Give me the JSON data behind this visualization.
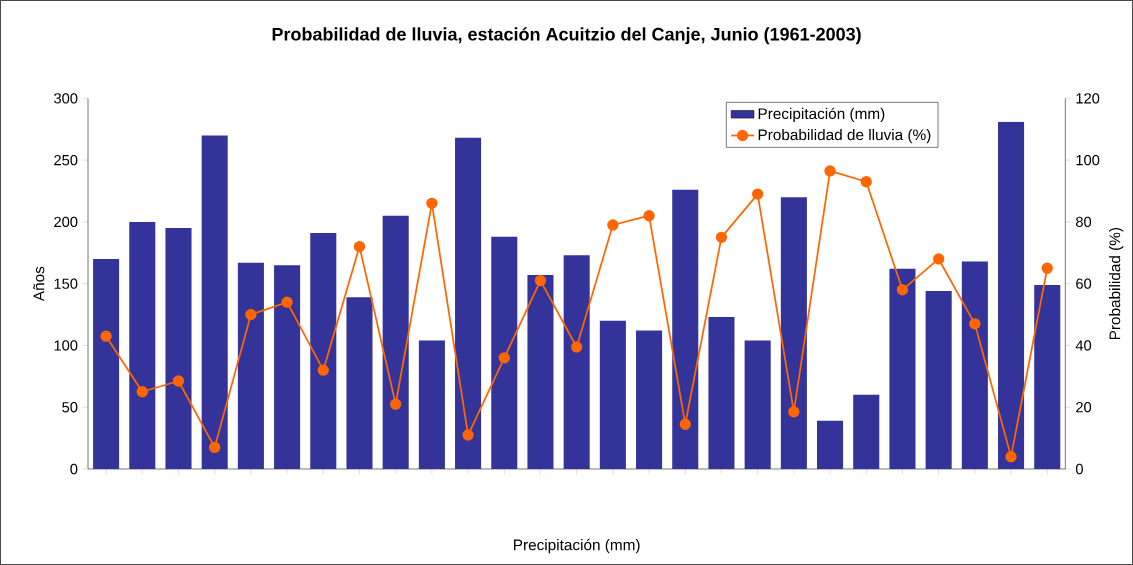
{
  "chart_data": {
    "type": "bar",
    "title": "Probabilidad de lluvia, estación Acuitzio del Canje, Junio (1961-2003)",
    "xlabel": "Precipitación (mm)",
    "ylabel": "Años",
    "y2label": "Probabilidad (%)",
    "categories": [
      null,
      null,
      null,
      null,
      null,
      null,
      null,
      null,
      null,
      null,
      null,
      null,
      null,
      null,
      null,
      null,
      null,
      null,
      null,
      null,
      null,
      null,
      null,
      null,
      null,
      null,
      null
    ],
    "series": [
      {
        "name": "Precipitación (mm)",
        "color": "#333399",
        "values": [
          170,
          200,
          195,
          270,
          167,
          165,
          191,
          139,
          205,
          104,
          268,
          188,
          157,
          173,
          120,
          112,
          226,
          123,
          104,
          220,
          39,
          60,
          162,
          144,
          168,
          281,
          149
        ]
      },
      {
        "name": "Probabilidad de lluvia (%)",
        "type": "line",
        "axis": "y2",
        "color": "#ff6600",
        "marker": "circle",
        "line_style": "solid",
        "values": [
          43,
          25,
          28.5,
          7,
          50,
          54,
          32,
          72,
          21,
          86,
          11,
          36,
          61,
          39.5,
          79,
          82,
          14.5,
          75,
          89,
          18.5,
          96.5,
          93,
          58,
          68,
          47,
          4,
          65
        ]
      }
    ],
    "ylim": [
      0,
      300
    ],
    "yticks": [
      0,
      50,
      100,
      150,
      200,
      250,
      300
    ],
    "y2lim": [
      0,
      120
    ],
    "y2ticks": [
      0,
      20,
      40,
      60,
      80,
      100,
      120
    ],
    "legend": "top right",
    "grid": false
  }
}
